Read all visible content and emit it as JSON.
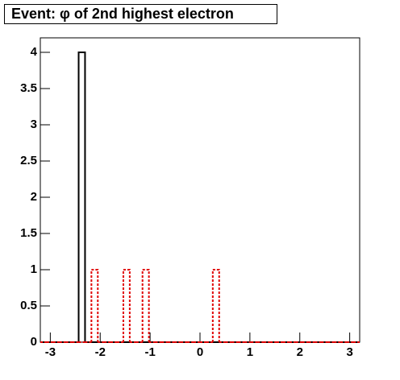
{
  "chart_data": {
    "type": "histogram",
    "title": "Event: φ of 2nd highest electron",
    "bins": [
      -3.2,
      -3.072,
      -2.944,
      -2.816,
      -2.688,
      -2.56,
      -2.432,
      -2.304,
      -2.176,
      -2.048,
      -1.92,
      -1.792,
      -1.664,
      -1.536,
      -1.408,
      -1.28,
      -1.152,
      -1.024,
      -0.896,
      -0.768,
      -0.64,
      -0.512,
      -0.384,
      -0.256,
      -0.128,
      0,
      0.128,
      0.256,
      0.384,
      0.512,
      0.64,
      0.768,
      0.896,
      1.024,
      1.152,
      1.28,
      1.408,
      1.536,
      1.664,
      1.792,
      1.92,
      2.048,
      2.176,
      2.304,
      2.432,
      2.56,
      2.688,
      2.816,
      2.944,
      3.072,
      3.2
    ],
    "series": [
      {
        "color": "#000000",
        "line_style": "solid",
        "values": [
          0,
          0,
          0,
          0,
          0,
          0,
          4,
          0,
          0,
          0,
          0,
          0,
          0,
          0,
          0,
          0,
          0,
          0,
          0,
          0,
          0,
          0,
          0,
          0,
          0,
          0,
          0,
          0,
          0,
          0,
          0,
          0,
          0,
          0,
          0,
          0,
          0,
          0,
          0,
          0,
          0,
          0,
          0,
          0,
          0,
          0,
          0,
          0,
          0,
          0
        ]
      },
      {
        "color": "#e00000",
        "line_style": "dotted",
        "values": [
          0,
          0,
          0,
          0,
          0,
          0,
          0,
          0,
          1,
          0,
          0,
          0,
          0,
          1,
          0,
          0,
          1,
          0,
          0,
          0,
          0,
          0,
          0,
          0,
          0,
          0,
          0,
          1,
          0,
          0,
          0,
          0,
          0,
          0,
          0,
          0,
          0,
          0,
          0,
          0,
          0,
          0,
          0,
          0,
          0,
          0,
          0,
          0,
          0,
          0
        ]
      }
    ],
    "xlim": [
      -3.2,
      3.2
    ],
    "ylim": [
      0,
      4.2
    ],
    "xticks": [
      -3,
      -2,
      -1,
      0,
      1,
      2,
      3
    ],
    "yticks": [
      0,
      0.5,
      1,
      1.5,
      2,
      2.5,
      3,
      3.5,
      4
    ]
  }
}
